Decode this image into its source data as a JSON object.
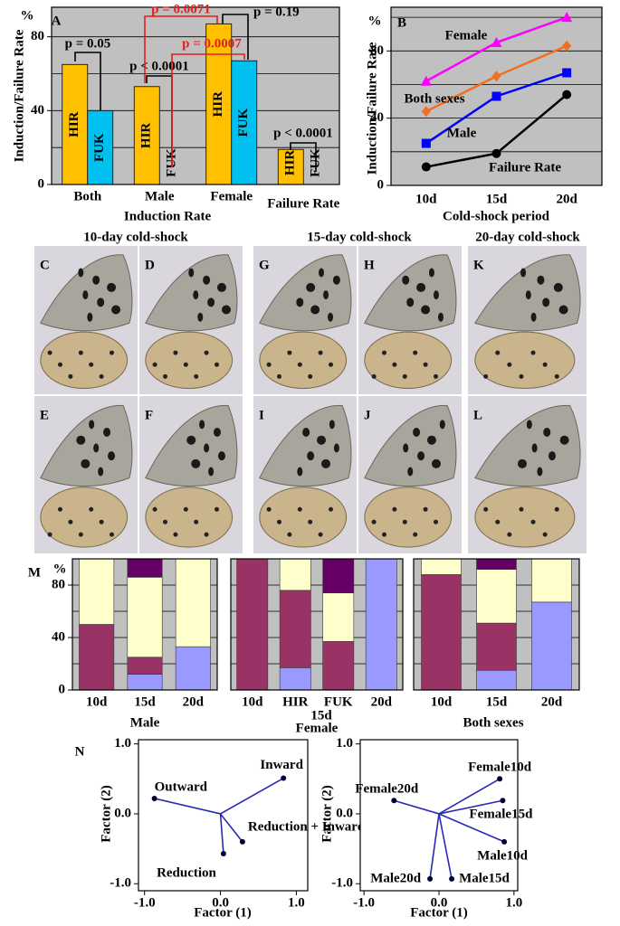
{
  "chart_data": [
    {
      "type": "bar",
      "panel": "A",
      "unit_label": "%",
      "y_label": "Induction/Failure Rate",
      "x_label": "Induction Rate",
      "plot_background": "#c0c0c0",
      "categories": [
        "Both",
        "Male",
        "Female",
        "Failure Rate"
      ],
      "series": [
        {
          "name": "HIR",
          "color": "#ffc000",
          "values": [
            65,
            53,
            87,
            19
          ]
        },
        {
          "name": "FUK",
          "color": "#00c0f0",
          "values": [
            40,
            0,
            67,
            0
          ]
        }
      ],
      "ylim": [
        0,
        96
      ],
      "yticks": [
        0,
        40,
        80
      ],
      "gridlines": [
        20,
        40,
        60,
        80
      ],
      "annotations": [
        {
          "text": "p = 0.05",
          "color": "#000000"
        },
        {
          "text": "p < 0.0001",
          "color": "#000000"
        },
        {
          "text": "p = 0.0071",
          "color": "#e02020"
        },
        {
          "text": "p = 0.0007",
          "color": "#e02020"
        },
        {
          "text": "p = 0.19",
          "color": "#000000"
        },
        {
          "text": "p < 0.0001",
          "color": "#000000"
        }
      ]
    },
    {
      "type": "line",
      "panel": "B",
      "unit_label": "%",
      "y_label": "Induction/Failure Rate",
      "x_label": "Cold-shock period",
      "plot_background": "#c0c0c0",
      "categories": [
        "10d",
        "15d",
        "20d"
      ],
      "series": [
        {
          "name": "Female",
          "color": "#ff00ff",
          "marker": "triangle",
          "values": [
            62,
            85,
            100
          ]
        },
        {
          "name": "Both sexes",
          "color": "#f07020",
          "marker": "diamond",
          "values": [
            44,
            65,
            83
          ]
        },
        {
          "name": "Male",
          "color": "#0000ff",
          "marker": "square",
          "values": [
            25,
            53,
            67
          ]
        },
        {
          "name": "Failure Rate",
          "color": "#000000",
          "marker": "circle",
          "values": [
            11,
            19,
            54
          ]
        }
      ],
      "ylim": [
        0,
        106
      ],
      "yticks": [
        0,
        40,
        80
      ],
      "gridlines": [
        20,
        40,
        60,
        80,
        100
      ]
    },
    {
      "type": "stacked_bar",
      "panel": "M",
      "unit_label": "%",
      "title": "Male",
      "plot_background": "#c0c0c0",
      "categories": [
        "10d",
        "15d",
        "20d"
      ],
      "series": [
        {
          "color": "#9999ff",
          "values": [
            0,
            12,
            33
          ]
        },
        {
          "color": "#993366",
          "values": [
            50,
            13,
            0
          ]
        },
        {
          "color": "#ffffcc",
          "values": [
            50,
            61,
            67
          ]
        },
        {
          "color": "#660066",
          "values": [
            0,
            14,
            0
          ]
        }
      ],
      "ylim": [
        0,
        100
      ],
      "yticks": [
        0,
        40,
        80
      ],
      "gridlines": [
        20,
        40,
        60,
        80
      ]
    },
    {
      "type": "stacked_bar",
      "title": "Female",
      "group_label": "15d",
      "plot_background": "#c0c0c0",
      "categories": [
        "10d",
        "HIR",
        "FUK",
        "20d"
      ],
      "series": [
        {
          "color": "#9999ff",
          "values": [
            0,
            17,
            0,
            100
          ]
        },
        {
          "color": "#993366",
          "values": [
            100,
            59,
            37,
            0
          ]
        },
        {
          "color": "#ffffcc",
          "values": [
            0,
            24,
            37,
            0
          ]
        },
        {
          "color": "#660066",
          "values": [
            0,
            0,
            26,
            0
          ]
        }
      ],
      "ylim": [
        0,
        100
      ],
      "gridlines": [
        20,
        40,
        60,
        80
      ]
    },
    {
      "type": "stacked_bar",
      "title": "Both sexes",
      "plot_background": "#c0c0c0",
      "categories": [
        "10d",
        "15d",
        "20d"
      ],
      "series": [
        {
          "color": "#9999ff",
          "values": [
            0,
            15,
            67
          ]
        },
        {
          "color": "#993366",
          "values": [
            88,
            36,
            0
          ]
        },
        {
          "color": "#ffffcc",
          "values": [
            12,
            41,
            33
          ]
        },
        {
          "color": "#660066",
          "values": [
            0,
            8,
            0
          ]
        }
      ],
      "ylim": [
        0,
        100
      ],
      "gridlines": [
        20,
        40,
        60,
        80
      ]
    },
    {
      "type": "scatter",
      "panel": "N",
      "x_label": "Factor (1)",
      "y_label": "Factor (2)",
      "origin_lines": true,
      "series": [
        {
          "color": "#2a2ab0",
          "x": [
            -0.87,
            0.83,
            0.04,
            0.29
          ],
          "values": [
            0.22,
            0.51,
            -0.57,
            -0.4
          ],
          "labels": [
            "Outward",
            "Inward",
            "Reduction",
            "Reduction + Inward"
          ]
        }
      ],
      "xlim": [
        -1.08,
        1.15
      ],
      "ylim": [
        -1.1,
        1.06
      ],
      "xticks": [
        {
          "value": -1,
          "label": "-1.0"
        },
        {
          "value": 0,
          "label": "0.0"
        },
        {
          "value": 1,
          "label": "1.0"
        }
      ],
      "yticks": [
        {
          "value": -1,
          "label": "-1.0"
        },
        {
          "value": 0,
          "label": "0.0"
        },
        {
          "value": 1,
          "label": "1.0"
        }
      ]
    },
    {
      "type": "scatter",
      "x_label": "Factor (1)",
      "y_label": "Factor (2)",
      "origin_lines": true,
      "series": [
        {
          "color": "#2a2ab0",
          "x": [
            0.81,
            0.85,
            -0.6,
            0.87,
            -0.12,
            0.17
          ],
          "values": [
            0.5,
            0.19,
            0.19,
            -0.4,
            -0.93,
            -0.93
          ],
          "labels": [
            "Female10d",
            "Female15d",
            "Female20d",
            "Male10d",
            "Male20d",
            "Male15d"
          ]
        }
      ],
      "xlim": [
        -1.05,
        1.05
      ],
      "ylim": [
        -1.1,
        1.06
      ],
      "xticks": [
        {
          "value": -1,
          "label": "-1.0"
        },
        {
          "value": 0,
          "label": "0.0"
        },
        {
          "value": 1,
          "label": "1.0"
        }
      ],
      "yticks": [
        {
          "value": -1,
          "label": "-1.0"
        },
        {
          "value": 0,
          "label": "0.0"
        },
        {
          "value": 1,
          "label": "1.0"
        }
      ]
    }
  ],
  "photos": {
    "groups": [
      {
        "title": "10-day cold-shock",
        "panels": [
          "C",
          "D",
          "E",
          "F"
        ]
      },
      {
        "title": "15-day cold-shock",
        "panels": [
          "G",
          "H",
          "I",
          "J"
        ]
      },
      {
        "title": "20-day cold-shock",
        "panels": [
          "K",
          "L"
        ]
      }
    ]
  }
}
